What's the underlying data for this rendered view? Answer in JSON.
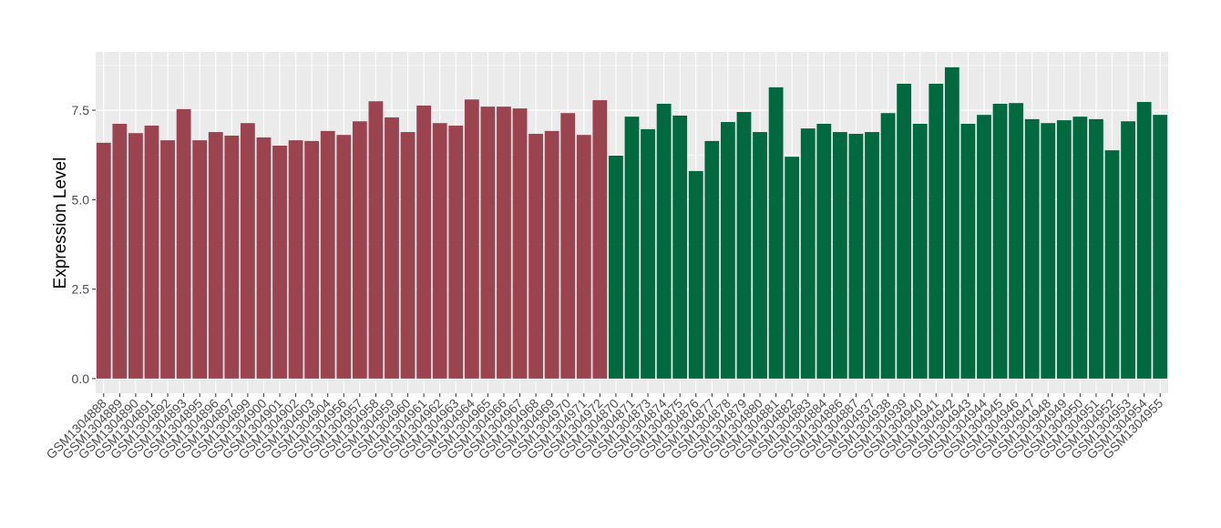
{
  "chart_data": {
    "type": "bar",
    "y_label": "Expression Level",
    "categories": [
      "GSM1304888",
      "GSM1304889",
      "GSM1304890",
      "GSM1304891",
      "GSM1304892",
      "GSM1304893",
      "GSM1304895",
      "GSM1304896",
      "GSM1304897",
      "GSM1304899",
      "GSM1304900",
      "GSM1304901",
      "GSM1304902",
      "GSM1304903",
      "GSM1304904",
      "GSM1304956",
      "GSM1304957",
      "GSM1304958",
      "GSM1304959",
      "GSM1304960",
      "GSM1304961",
      "GSM1304962",
      "GSM1304963",
      "GSM1304964",
      "GSM1304965",
      "GSM1304966",
      "GSM1304967",
      "GSM1304968",
      "GSM1304969",
      "GSM1304970",
      "GSM1304971",
      "GSM1304972",
      "GSM1304870",
      "GSM1304871",
      "GSM1304873",
      "GSM1304874",
      "GSM1304875",
      "GSM1304876",
      "GSM1304877",
      "GSM1304878",
      "GSM1304879",
      "GSM1304880",
      "GSM1304881",
      "GSM1304882",
      "GSM1304883",
      "GSM1304884",
      "GSM1304886",
      "GSM1304887",
      "GSM1304937",
      "GSM1304938",
      "GSM1304939",
      "GSM1304940",
      "GSM1304941",
      "GSM1304942",
      "GSM1304943",
      "GSM1304944",
      "GSM1304945",
      "GSM1304946",
      "GSM1304947",
      "GSM1304948",
      "GSM1304949",
      "GSM1304950",
      "GSM1304951",
      "GSM1304952",
      "GSM1304953",
      "GSM1304954",
      "GSM1304955"
    ],
    "values": [
      6.59,
      7.12,
      6.86,
      7.07,
      6.66,
      7.53,
      6.66,
      6.89,
      6.79,
      7.14,
      6.74,
      6.51,
      6.66,
      6.64,
      6.92,
      6.81,
      7.19,
      7.75,
      7.3,
      6.89,
      7.63,
      7.14,
      7.07,
      7.8,
      7.6,
      7.6,
      7.55,
      6.84,
      6.92,
      7.42,
      6.81,
      7.78,
      6.23,
      7.32,
      6.97,
      7.68,
      7.35,
      5.8,
      6.64,
      7.17,
      7.45,
      6.89,
      8.14,
      6.2,
      6.99,
      7.12,
      6.89,
      6.84,
      6.89,
      7.42,
      8.24,
      7.12,
      8.24,
      8.7,
      7.12,
      7.37,
      7.68,
      7.7,
      7.25,
      7.14,
      7.22,
      7.32,
      7.25,
      6.38,
      7.19,
      7.73,
      7.37
    ],
    "colors": [
      "#9c4350",
      "#9c4350",
      "#9c4350",
      "#9c4350",
      "#9c4350",
      "#9c4350",
      "#9c4350",
      "#9c4350",
      "#9c4350",
      "#9c4350",
      "#9c4350",
      "#9c4350",
      "#9c4350",
      "#9c4350",
      "#9c4350",
      "#9c4350",
      "#9c4350",
      "#9c4350",
      "#9c4350",
      "#9c4350",
      "#9c4350",
      "#9c4350",
      "#9c4350",
      "#9c4350",
      "#9c4350",
      "#9c4350",
      "#9c4350",
      "#9c4350",
      "#9c4350",
      "#9c4350",
      "#9c4350",
      "#9c4350",
      "#006940",
      "#006940",
      "#006940",
      "#006940",
      "#006940",
      "#006940",
      "#006940",
      "#006940",
      "#006940",
      "#006940",
      "#006940",
      "#006940",
      "#006940",
      "#006940",
      "#006940",
      "#006940",
      "#006940",
      "#006940",
      "#006940",
      "#006940",
      "#006940",
      "#006940",
      "#006940",
      "#006940",
      "#006940",
      "#006940",
      "#006940",
      "#006940",
      "#006940",
      "#006940",
      "#006940",
      "#006940",
      "#006940",
      "#006940",
      "#006940"
    ],
    "ylim": [
      -0.41,
      9.13
    ],
    "yticks": [
      {
        "value": 0,
        "label": "0.0"
      },
      2.5,
      {
        "value": 5,
        "label": "5.0"
      },
      7.5
    ],
    "grid": true
  }
}
